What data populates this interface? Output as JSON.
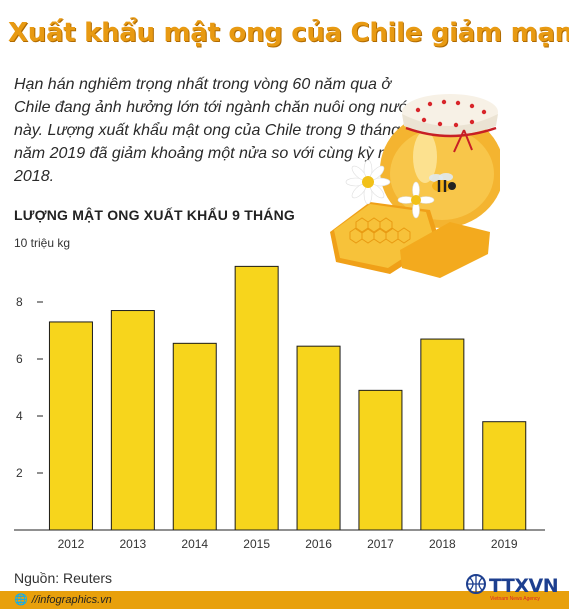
{
  "title": "Xuất khẩu mật ong của Chile giảm mạnh",
  "intro": "Hạn hán nghiêm trọng nhất trong vòng 60 năm qua ở Chile đang ảnh hưởng lớn tới ngành chăn nuôi ong nước này. Lượng xuất khẩu mật ong của Chile trong 9 tháng năm 2019 đã giảm khoảng một nửa so với cùng kỳ năm 2018.",
  "chart_heading": "LƯỢNG MẬT ONG XUẤT KHẨU 9 THÁNG",
  "source": "Nguồn: Reuters",
  "footer": {
    "globe": "🌐",
    "site": "//infographics.vn"
  },
  "logo": {
    "name": "TTXVN",
    "subtitle": "Vietnam News Agency"
  },
  "colors": {
    "title": "#e89a12",
    "bar": "#f7d51c",
    "bar_outline": "#1a1a1a",
    "footer": "#e8a00c"
  },
  "chart_data": {
    "type": "bar",
    "categories": [
      "2012",
      "2013",
      "2014",
      "2015",
      "2016",
      "2017",
      "2018",
      "2019"
    ],
    "values": [
      7.3,
      7.7,
      6.55,
      9.25,
      6.45,
      4.9,
      6.7,
      3.8
    ],
    "ylabel": "10 triệu kg",
    "ylim": [
      0,
      10
    ],
    "yticks": [
      "2",
      "4",
      "6",
      "8"
    ],
    "grid": false,
    "legend": "none"
  }
}
